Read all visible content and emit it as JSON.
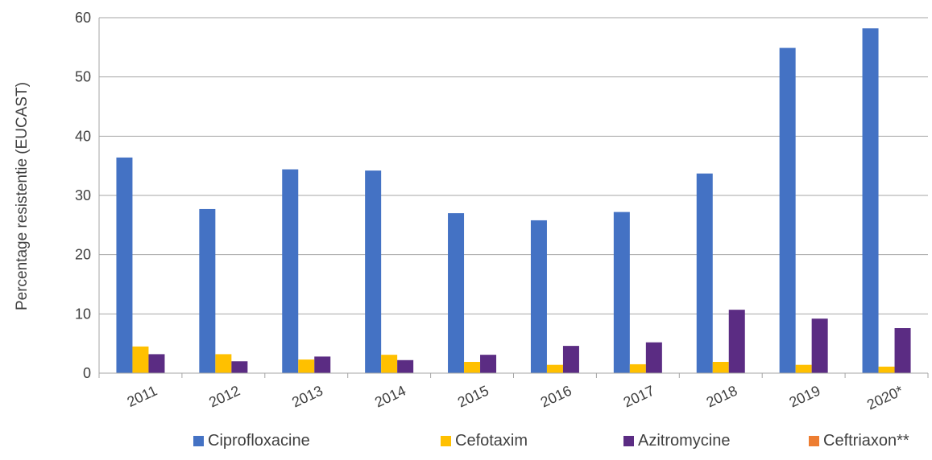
{
  "chart_data": {
    "type": "bar",
    "title": "",
    "xlabel": "",
    "ylabel": "Percentage resistentie (EUCAST)",
    "ylim": [
      0,
      60
    ],
    "yticks": [
      0,
      10,
      20,
      30,
      40,
      50,
      60
    ],
    "grid": true,
    "legend_position": "bottom",
    "categories": [
      "2011",
      "2012",
      "2013",
      "2014",
      "2015",
      "2016",
      "2017",
      "2018",
      "2019",
      "2020*"
    ],
    "series": [
      {
        "name": "Ciprofloxacine",
        "color": "#4472C4",
        "values": [
          36.4,
          27.7,
          34.4,
          34.2,
          27.0,
          25.8,
          27.2,
          33.7,
          54.9,
          58.2
        ]
      },
      {
        "name": "Cefotaxim",
        "color": "#FFC000",
        "values": [
          4.5,
          3.2,
          2.3,
          3.1,
          1.9,
          1.4,
          1.5,
          1.9,
          1.4,
          1.1
        ]
      },
      {
        "name": "Azitromycine",
        "color": "#5B2C83",
        "values": [
          3.2,
          2.0,
          2.8,
          2.2,
          3.1,
          4.6,
          5.2,
          10.7,
          9.2,
          7.6
        ]
      },
      {
        "name": "Ceftriaxon**",
        "color": "#ED7D31",
        "values": [
          null,
          null,
          null,
          null,
          null,
          null,
          null,
          null,
          null,
          null
        ]
      }
    ]
  }
}
